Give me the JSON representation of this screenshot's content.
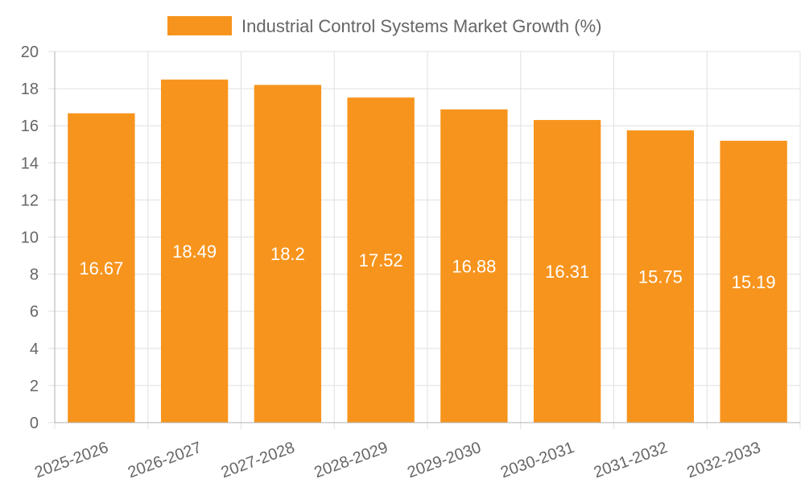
{
  "chart_data": {
    "type": "bar",
    "legend": {
      "label": "Industrial Control Systems Market Growth (%)",
      "position": "top"
    },
    "categories": [
      "2025-2026",
      "2026-2027",
      "2027-2028",
      "2028-2029",
      "2029-2030",
      "2030-2031",
      "2031-2032",
      "2032-2033"
    ],
    "series": [
      {
        "name": "Industrial Control Systems Market Growth (%)",
        "values": [
          16.67,
          18.49,
          18.2,
          17.52,
          16.88,
          16.31,
          15.75,
          15.19
        ],
        "color": "#f7941d"
      }
    ],
    "data_labels": [
      "16.67",
      "18.49",
      "18.2",
      "17.52",
      "16.88",
      "16.31",
      "15.75",
      "15.19"
    ],
    "y_ticks": [
      "0",
      "2",
      "4",
      "6",
      "8",
      "10",
      "12",
      "14",
      "16",
      "18",
      "20"
    ],
    "ylim": [
      0,
      20
    ],
    "grid": true
  }
}
